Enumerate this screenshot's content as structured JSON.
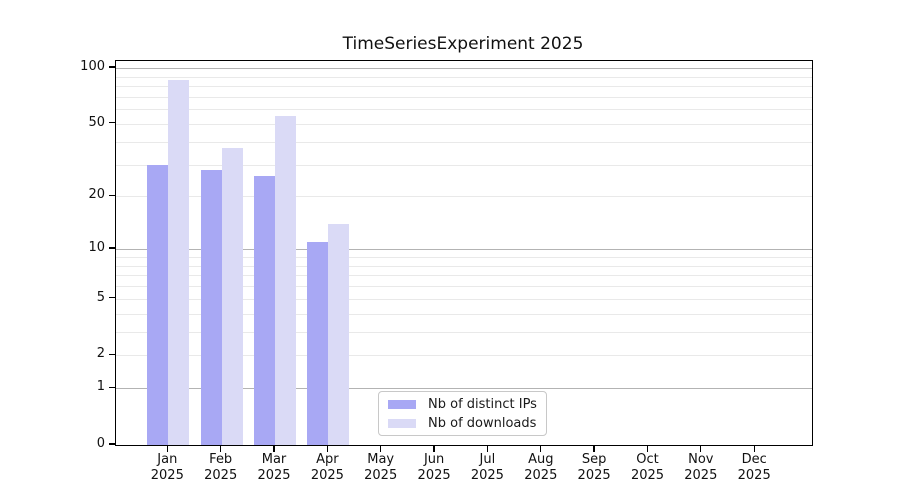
{
  "title": "TimeSeriesExperiment 2025",
  "chart_data": {
    "type": "bar",
    "title": "TimeSeriesExperiment 2025",
    "categories": [
      "Jan",
      "Feb",
      "Mar",
      "Apr",
      "May",
      "Jun",
      "Jul",
      "Aug",
      "Sep",
      "Oct",
      "Nov",
      "Dec"
    ],
    "category_year": "2025",
    "series": [
      {
        "name": "Nb of distinct IPs",
        "color": "#a8a8f4",
        "values": [
          30,
          28,
          26,
          11,
          null,
          null,
          null,
          null,
          null,
          null,
          null,
          null
        ]
      },
      {
        "name": "Nb of downloads",
        "color": "#dadaf6",
        "values": [
          86,
          37,
          55,
          14,
          null,
          null,
          null,
          null,
          null,
          null,
          null,
          null
        ]
      }
    ],
    "yscale": "log1p",
    "yticks": [
      0,
      1,
      2,
      5,
      10,
      20,
      50,
      100
    ],
    "minor_grid_values": [
      2,
      3,
      4,
      5,
      6,
      7,
      8,
      9,
      20,
      30,
      40,
      50,
      60,
      70,
      80,
      90
    ],
    "major_grid_values": [
      1,
      10,
      100
    ],
    "ylim": [
      0,
      109
    ],
    "xlabel": "",
    "ylabel": "",
    "grid": "horizontal",
    "legend": {
      "position": "inside-bottom-center",
      "entries": [
        "Nb of distinct IPs",
        "Nb of downloads"
      ]
    },
    "colors": {
      "minor_grid": "#e9e9e9",
      "major_grid": "#b3b3b3",
      "axis": "#000000",
      "text": "#111111"
    }
  }
}
